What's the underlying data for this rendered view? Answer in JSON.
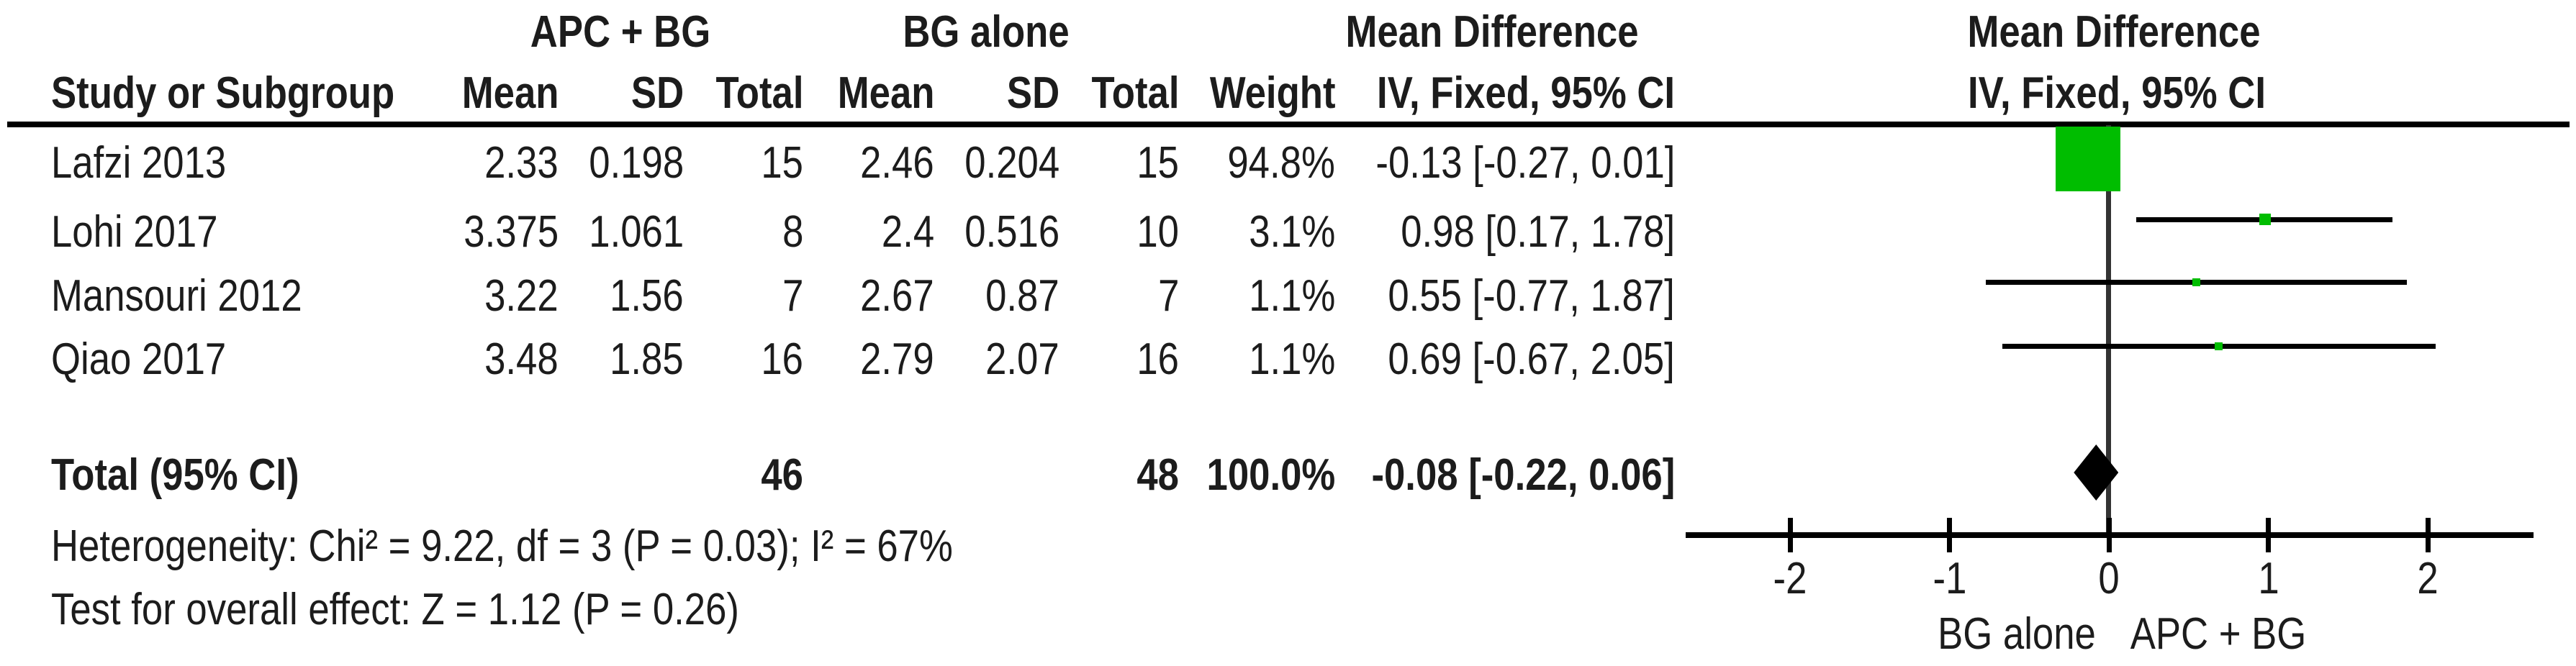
{
  "table": {
    "group1": "APC + BG",
    "group2": "BG alone",
    "effect": "Mean Difference",
    "headers": {
      "study": "Study or Subgroup",
      "mean": "Mean",
      "sd": "SD",
      "total": "Total",
      "weight": "Weight",
      "method": "IV, Fixed, 95% CI"
    }
  },
  "plot": {
    "effect": "Mean Difference",
    "method": "IV, Fixed, 95% CI"
  },
  "rows": [
    {
      "study": "Lafzi 2013",
      "mean1": "2.33",
      "sd1": "0.198",
      "total1": "15",
      "mean2": "2.46",
      "sd2": "0.204",
      "total2": "15",
      "weight": "94.8%",
      "ci": "-0.13 [-0.27, 0.01]"
    },
    {
      "study": "Lohi 2017",
      "mean1": "3.375",
      "sd1": "1.061",
      "total1": "8",
      "mean2": "2.4",
      "sd2": "0.516",
      "total2": "10",
      "weight": "3.1%",
      "ci": "0.98 [0.17, 1.78]"
    },
    {
      "study": "Mansouri 2012",
      "mean1": "3.22",
      "sd1": "1.56",
      "total1": "7",
      "mean2": "2.67",
      "sd2": "0.87",
      "total2": "7",
      "weight": "1.1%",
      "ci": "0.55 [-0.77, 1.87]"
    },
    {
      "study": "Qiao 2017",
      "mean1": "3.48",
      "sd1": "1.85",
      "total1": "16",
      "mean2": "2.79",
      "sd2": "2.07",
      "total2": "16",
      "weight": "1.1%",
      "ci": "0.69 [-0.67, 2.05]"
    }
  ],
  "total_row": {
    "label": "Total (95% CI)",
    "total1": "46",
    "total2": "48",
    "weight": "100.0%",
    "ci": "-0.08 [-0.22, 0.06]"
  },
  "footnotes": {
    "heterogeneity": "Heterogeneity: Chi² = 9.22, df = 3 (P = 0.03); I² = 67%",
    "overall": "Test for overall effect: Z = 1.12 (P = 0.26)"
  },
  "axis_tick_labels": [
    "-2",
    "-1",
    "0",
    "1",
    "2"
  ],
  "chart_data": {
    "type": "scatter",
    "subtype": "forest-plot",
    "title": "Mean Difference  IV, Fixed, 95% CI",
    "xlabel_left": "BG alone",
    "xlabel_right": "APC + BG",
    "xlim": [
      -2,
      2
    ],
    "ticks": [
      -2,
      -1,
      0,
      1,
      2
    ],
    "grid": false,
    "studies": [
      {
        "name": "Lafzi 2013",
        "md": -0.13,
        "ci_low": -0.27,
        "ci_high": 0.01,
        "weight_pct": 94.8
      },
      {
        "name": "Lohi 2017",
        "md": 0.98,
        "ci_low": 0.17,
        "ci_high": 1.78,
        "weight_pct": 3.1
      },
      {
        "name": "Mansouri 2012",
        "md": 0.55,
        "ci_low": -0.77,
        "ci_high": 1.87,
        "weight_pct": 1.1
      },
      {
        "name": "Qiao 2017",
        "md": 0.69,
        "ci_low": -0.67,
        "ci_high": 2.05,
        "weight_pct": 1.1
      }
    ],
    "total": {
      "name": "Total (95% CI)",
      "md": -0.08,
      "ci_low": -0.22,
      "ci_high": 0.06,
      "weight_pct": 100.0
    },
    "colors": {
      "square": "#00bd00",
      "diamond": "#000000",
      "line": "#000000"
    }
  }
}
